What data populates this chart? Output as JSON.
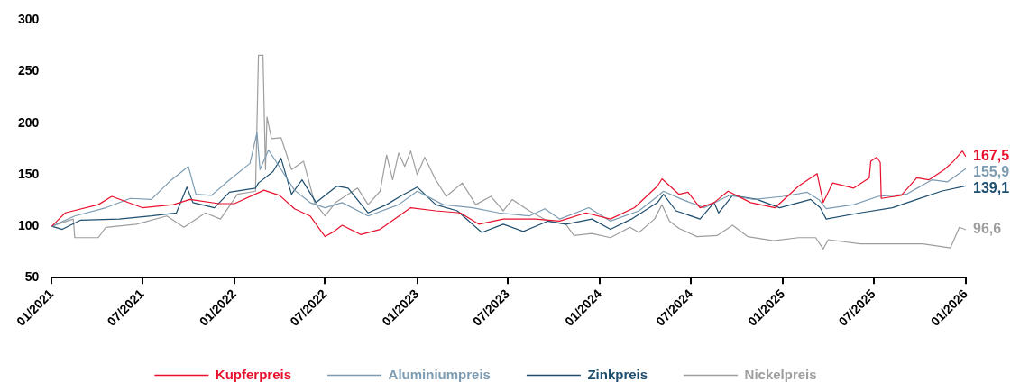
{
  "chart_data": {
    "type": "line",
    "legend": "bottom",
    "ylim": [
      50,
      300
    ],
    "yticks": [
      50,
      100,
      150,
      200,
      250,
      300
    ],
    "xlim": [
      "2021-01",
      "2026-01"
    ],
    "xticks": [
      {
        "value": "2021-01",
        "label": "01/2021"
      },
      {
        "value": "2021-07",
        "label": "07/2021"
      },
      {
        "value": "2022-01",
        "label": "01/2022"
      },
      {
        "value": "2022-07",
        "label": "07/2022"
      },
      {
        "value": "2023-01",
        "label": "01/2023"
      },
      {
        "value": "2023-07",
        "label": "07/2023"
      },
      {
        "value": "2024-01",
        "label": "01/2024"
      },
      {
        "value": "2024-07",
        "label": "07/2024"
      },
      {
        "value": "2025-01",
        "label": "01/2025"
      },
      {
        "value": "2025-07",
        "label": "07/2025"
      },
      {
        "value": "2026-01",
        "label": "01/2026"
      }
    ],
    "series": [
      {
        "name": "Kupferpreis",
        "color": "#e8112d",
        "x": [
          "2021-01-01",
          "2021-01-28",
          "2021-04-04",
          "2021-05-01",
          "2021-07-01",
          "2021-09-01",
          "2021-10-04",
          "2021-12-01",
          "2022-01-01",
          "2022-03-01",
          "2022-04-01",
          "2022-05-01",
          "2022-06-01",
          "2022-07-01",
          "2022-07-19",
          "2022-08-04",
          "2022-09-10",
          "2022-10-19",
          "2022-12-19",
          "2023-02-07",
          "2023-03-28",
          "2023-05-04",
          "2023-06-22",
          "2023-08-25",
          "2023-10-13",
          "2023-12-04",
          "2024-01-22",
          "2024-03-10",
          "2024-04-25",
          "2024-05-04",
          "2024-06-07",
          "2024-06-25",
          "2024-07-19",
          "2024-08-16",
          "2024-09-13",
          "2024-10-28",
          "2024-12-16",
          "2025-02-01",
          "2025-03-10",
          "2025-03-22",
          "2025-04-10",
          "2025-05-22",
          "2025-06-22",
          "2025-06-25",
          "2025-07-07",
          "2025-07-14",
          "2025-07-16",
          "2025-08-25",
          "2025-09-25",
          "2025-10-19",
          "2025-11-19",
          "2025-12-07",
          "2025-12-25",
          "2026-01-01"
        ],
        "values": [
          100,
          113,
          121,
          129,
          118,
          121,
          126,
          122,
          122,
          135,
          130,
          117,
          110,
          90,
          95,
          101,
          92,
          97,
          118,
          115,
          113,
          102,
          107,
          107,
          105,
          113,
          107,
          118,
          139,
          146,
          131,
          133,
          118,
          123,
          134,
          123,
          118,
          139,
          151,
          123,
          142,
          137,
          147,
          163,
          167,
          162,
          127,
          130,
          147,
          145,
          155,
          163,
          173,
          167.5
        ],
        "value_labels": [
          null,
          null,
          null,
          null,
          null,
          null,
          null,
          null,
          null,
          null,
          null,
          null,
          null,
          null,
          null,
          null,
          null,
          null,
          null,
          null,
          null,
          null,
          null,
          null,
          null,
          null,
          null,
          null,
          null,
          null,
          null,
          null,
          null,
          null,
          null,
          null,
          null,
          null,
          null,
          null,
          null,
          null,
          null,
          null,
          null,
          null,
          null,
          null,
          null,
          null,
          null,
          null,
          null,
          "167,5"
        ]
      },
      {
        "name": "Aluminiumpreis",
        "color": "#7c9cb3",
        "x": [
          "2021-01-01",
          "2021-02-16",
          "2021-04-19",
          "2021-06-07",
          "2021-07-19",
          "2021-08-28",
          "2021-10-01",
          "2021-10-16",
          "2021-11-16",
          "2021-12-22",
          "2022-02-01",
          "2022-02-15",
          "2022-02-21",
          "2022-03-10",
          "2022-04-07",
          "2022-05-01",
          "2022-06-01",
          "2022-07-01",
          "2022-08-04",
          "2022-09-25",
          "2022-11-25",
          "2023-01-01",
          "2023-02-22",
          "2023-04-22",
          "2023-06-13",
          "2023-08-13",
          "2023-09-13",
          "2023-10-13",
          "2023-12-10",
          "2024-01-22",
          "2024-03-19",
          "2024-04-25",
          "2024-05-07",
          "2024-06-13",
          "2024-07-28",
          "2024-09-16",
          "2024-11-04",
          "2025-01-01",
          "2025-02-18",
          "2025-03-13",
          "2025-03-28",
          "2025-05-22",
          "2025-07-10",
          "2025-09-04",
          "2025-10-25",
          "2025-11-25",
          "2026-01-01"
        ],
        "values": [
          100,
          110,
          118,
          127,
          126,
          145,
          158,
          131,
          130,
          145,
          161,
          191,
          155,
          174,
          153,
          135,
          123,
          118,
          123,
          110,
          121,
          134,
          121,
          118,
          113,
          110,
          117,
          107,
          118,
          105,
          115,
          129,
          134,
          126,
          118,
          130,
          126,
          129,
          133,
          126,
          117,
          121,
          129,
          131,
          145,
          143,
          155.9
        ],
        "value_labels": [
          null,
          null,
          null,
          null,
          null,
          null,
          null,
          null,
          null,
          null,
          null,
          null,
          null,
          null,
          null,
          null,
          null,
          null,
          null,
          null,
          null,
          null,
          null,
          null,
          null,
          null,
          null,
          null,
          null,
          null,
          null,
          null,
          null,
          null,
          null,
          null,
          null,
          null,
          null,
          null,
          null,
          null,
          null,
          null,
          null,
          null,
          "155,9"
        ]
      },
      {
        "name": "Zinkpreis",
        "color": "#1d4e6f",
        "x": [
          "2021-01-01",
          "2021-01-22",
          "2021-02-28",
          "2021-05-16",
          "2021-07-19",
          "2021-09-07",
          "2021-09-28",
          "2021-10-10",
          "2021-11-22",
          "2021-12-22",
          "2022-02-12",
          "2022-02-18",
          "2022-03-19",
          "2022-04-04",
          "2022-04-25",
          "2022-05-16",
          "2022-06-13",
          "2022-07-25",
          "2022-08-16",
          "2022-09-25",
          "2022-11-01",
          "2022-11-28",
          "2023-01-01",
          "2023-02-07",
          "2023-03-22",
          "2023-05-10",
          "2023-06-22",
          "2023-08-01",
          "2023-09-19",
          "2023-10-25",
          "2023-12-16",
          "2024-01-22",
          "2024-03-04",
          "2024-04-25",
          "2024-05-07",
          "2024-06-01",
          "2024-07-19",
          "2024-08-16",
          "2024-08-25",
          "2024-09-22",
          "2024-11-10",
          "2024-12-25",
          "2025-02-25",
          "2025-03-16",
          "2025-03-28",
          "2025-06-04",
          "2025-08-07",
          "2025-09-25",
          "2025-11-13",
          "2026-01-01"
        ],
        "values": [
          100,
          97,
          106,
          107,
          110,
          113,
          138,
          123,
          118,
          133,
          137,
          142,
          153,
          166,
          131,
          145,
          123,
          139,
          137,
          113,
          121,
          129,
          138,
          121,
          115,
          94,
          102,
          95,
          105,
          102,
          107,
          97,
          107,
          123,
          131,
          115,
          107,
          123,
          113,
          130,
          126,
          118,
          126,
          118,
          107,
          113,
          118,
          126,
          134,
          139.1
        ],
        "value_labels": [
          null,
          null,
          null,
          null,
          null,
          null,
          null,
          null,
          null,
          null,
          null,
          null,
          null,
          null,
          null,
          null,
          null,
          null,
          null,
          null,
          null,
          null,
          null,
          null,
          null,
          null,
          null,
          null,
          null,
          null,
          null,
          null,
          null,
          null,
          null,
          null,
          null,
          null,
          null,
          null,
          null,
          null,
          null,
          null,
          null,
          null,
          null,
          null,
          null,
          "139,1"
        ]
      },
      {
        "name": "Nickelpreis",
        "color": "#9e9e9e",
        "x": [
          "2021-01-01",
          "2021-02-13",
          "2021-02-16",
          "2021-04-04",
          "2021-04-19",
          "2021-06-19",
          "2021-08-19",
          "2021-09-22",
          "2021-11-04",
          "2021-12-04",
          "2022-01-07",
          "2022-02-12",
          "2022-02-18",
          "2022-02-27",
          "2022-03-04",
          "2022-03-07",
          "2022-03-16",
          "2022-04-04",
          "2022-04-25",
          "2022-05-19",
          "2022-06-10",
          "2022-07-01",
          "2022-07-22",
          "2022-09-04",
          "2022-09-25",
          "2022-10-19",
          "2022-11-01",
          "2022-11-13",
          "2022-11-25",
          "2022-12-07",
          "2022-12-19",
          "2023-01-01",
          "2023-01-16",
          "2023-02-07",
          "2023-02-28",
          "2023-04-01",
          "2023-04-28",
          "2023-05-28",
          "2023-06-22",
          "2023-07-10",
          "2023-08-13",
          "2023-09-19",
          "2023-10-25",
          "2023-11-10",
          "2023-12-16",
          "2024-01-22",
          "2024-03-01",
          "2024-03-19",
          "2024-04-19",
          "2024-05-04",
          "2024-05-19",
          "2024-06-07",
          "2024-07-13",
          "2024-08-22",
          "2024-09-22",
          "2024-10-22",
          "2024-12-13",
          "2025-02-01",
          "2025-03-07",
          "2025-03-22",
          "2025-04-01",
          "2025-06-04",
          "2025-08-07",
          "2025-10-07",
          "2025-12-01",
          "2025-12-19",
          "2026-01-01"
        ],
        "values": [
          100,
          107,
          89,
          89,
          99,
          102,
          110,
          99,
          113,
          107,
          131,
          134,
          266,
          266,
          155,
          206,
          185,
          186,
          155,
          163,
          123,
          110,
          123,
          137,
          121,
          134,
          169,
          145,
          171,
          158,
          173,
          150,
          167,
          145,
          129,
          142,
          121,
          129,
          115,
          126,
          115,
          105,
          102,
          91,
          93,
          89,
          99,
          94,
          107,
          121,
          105,
          98,
          90,
          91,
          101,
          90,
          86,
          89,
          89,
          78,
          87,
          83,
          83,
          83,
          79,
          99,
          96.6
        ],
        "value_labels": [
          null,
          null,
          null,
          null,
          null,
          null,
          null,
          null,
          null,
          null,
          null,
          null,
          null,
          null,
          null,
          null,
          null,
          null,
          null,
          null,
          null,
          null,
          null,
          null,
          null,
          null,
          null,
          null,
          null,
          null,
          null,
          null,
          null,
          null,
          null,
          null,
          null,
          null,
          null,
          null,
          null,
          null,
          null,
          null,
          null,
          null,
          null,
          null,
          null,
          null,
          null,
          null,
          null,
          null,
          null,
          null,
          null,
          null,
          null,
          null,
          null,
          null,
          null,
          null,
          null,
          null,
          "96,6"
        ]
      }
    ]
  }
}
